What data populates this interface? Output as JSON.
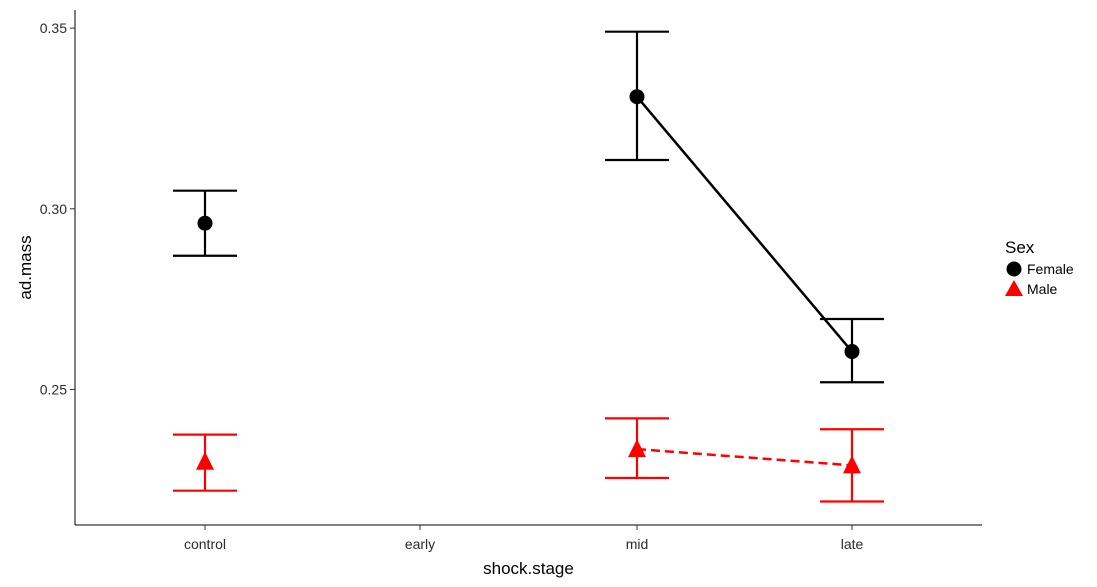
{
  "chart_data": {
    "type": "line",
    "xlabel": "shock.stage",
    "ylabel": "ad.mass",
    "categories": [
      "control",
      "early",
      "mid",
      "late"
    ],
    "ylim": [
      0.2125,
      0.355
    ],
    "yticks": [
      0.25,
      0.3,
      0.35
    ],
    "ytick_labels": [
      "0.25",
      "0.30",
      "0.35"
    ],
    "grid": false,
    "legend": {
      "title": "Sex",
      "position": "right"
    },
    "series": [
      {
        "name": "Female",
        "color": "#000000",
        "marker": "circle",
        "linestyle": "solid",
        "points": [
          {
            "x": "control",
            "y": 0.296,
            "ymin": 0.287,
            "ymax": 0.305
          },
          {
            "x": "mid",
            "y": 0.331,
            "ymin": 0.3135,
            "ymax": 0.349
          },
          {
            "x": "late",
            "y": 0.2605,
            "ymin": 0.252,
            "ymax": 0.2695
          }
        ],
        "lines": [
          [
            "mid",
            "late"
          ]
        ]
      },
      {
        "name": "Male",
        "color": "#ff0000",
        "marker": "triangle",
        "linestyle": "dashed",
        "points": [
          {
            "x": "control",
            "y": 0.23,
            "ymin": 0.222,
            "ymax": 0.2375
          },
          {
            "x": "mid",
            "y": 0.2335,
            "ymin": 0.2255,
            "ymax": 0.242
          },
          {
            "x": "late",
            "y": 0.229,
            "ymin": 0.219,
            "ymax": 0.239
          }
        ],
        "lines": [
          [
            "mid",
            "late"
          ]
        ]
      }
    ]
  }
}
